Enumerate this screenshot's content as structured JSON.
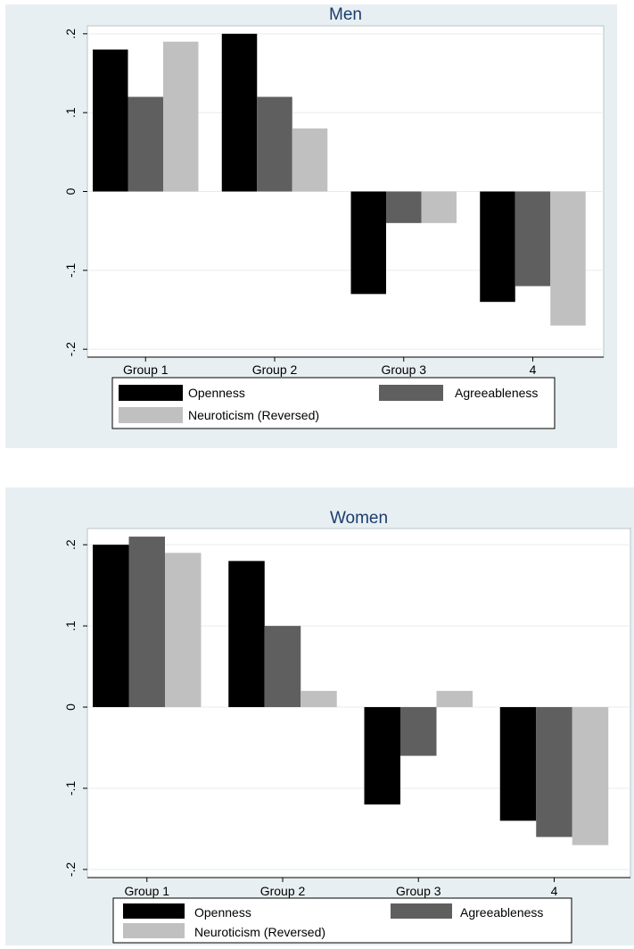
{
  "colors": {
    "openness": "#000000",
    "agreeableness": "#5f5f5f",
    "neuroticism": "#c0c0c0",
    "panel_background": "#e8eff2",
    "plot_background": "#ffffff",
    "title_color": "#1a3d6d"
  },
  "chart_data": [
    {
      "type": "bar",
      "title": "Men",
      "categories": [
        "Group 1",
        "Group 2",
        "Group 3",
        "4"
      ],
      "series": [
        {
          "name": "Openness",
          "values": [
            0.18,
            0.2,
            -0.13,
            -0.14
          ]
        },
        {
          "name": "Agreeableness",
          "values": [
            0.12,
            0.12,
            -0.04,
            -0.12
          ]
        },
        {
          "name": "Neuroticism (Reversed)",
          "values": [
            0.19,
            0.08,
            -0.04,
            -0.17
          ]
        }
      ],
      "ylim": [
        -0.21,
        0.21
      ],
      "yticks": [
        0.2,
        0.1,
        0,
        -0.1,
        -0.2
      ],
      "ytick_labels": [
        ".2",
        ".1",
        "0",
        "-.1",
        "-.2"
      ],
      "grid": true,
      "legend_position": "bottom"
    },
    {
      "type": "bar",
      "title": "Women",
      "categories": [
        "Group 1",
        "Group 2",
        "Group 3",
        "4"
      ],
      "series": [
        {
          "name": "Openness",
          "values": [
            0.2,
            0.18,
            -0.12,
            -0.14
          ]
        },
        {
          "name": "Agreeableness",
          "values": [
            0.21,
            0.1,
            -0.06,
            -0.16
          ]
        },
        {
          "name": "Neuroticism (Reversed)",
          "values": [
            0.19,
            0.02,
            0.02,
            -0.17
          ]
        }
      ],
      "ylim": [
        -0.21,
        0.22
      ],
      "yticks": [
        0.2,
        0.1,
        0,
        -0.1,
        -0.2
      ],
      "ytick_labels": [
        ".2",
        ".1",
        "0",
        "-.1",
        "-.2"
      ],
      "grid": true,
      "legend_position": "bottom"
    }
  ]
}
